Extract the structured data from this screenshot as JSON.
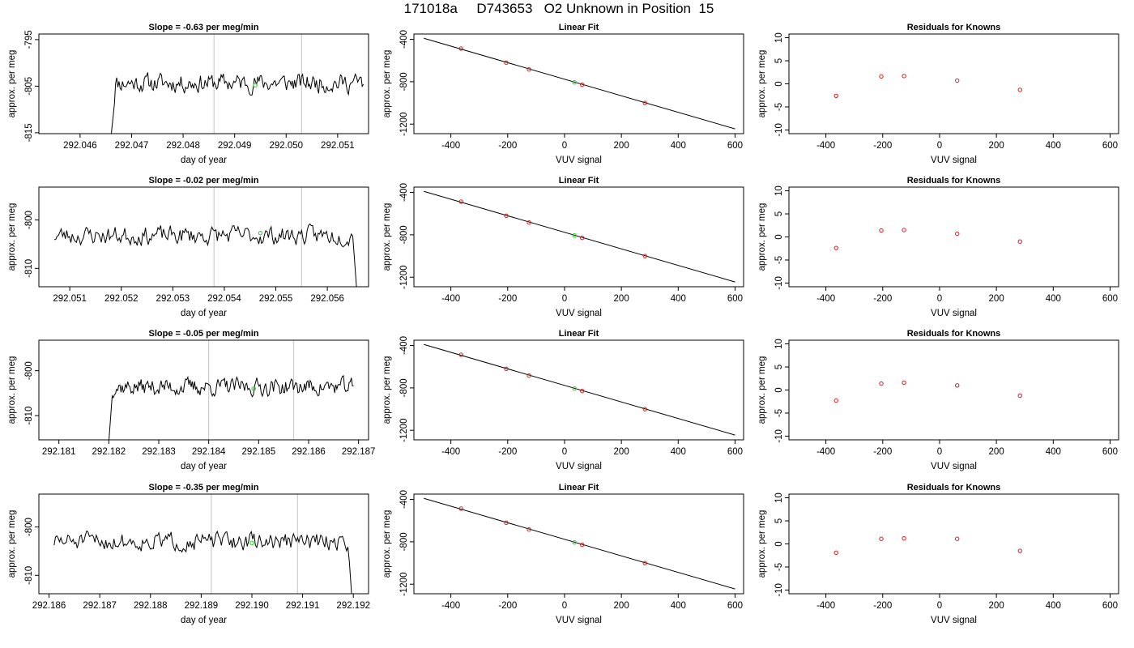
{
  "figure_title": "171018a     D743653   O2 Unknown in Position  15",
  "colors": {
    "trace": "#000000",
    "fit_line": "#000000",
    "point": "#d02020",
    "unknown_point": "#22dd22",
    "vline": "#cccccc"
  },
  "chart_data": [
    {
      "type": "line",
      "title": "Slope =  -0.63  per meg/min",
      "xlabel": "day of year",
      "ylabel": "approx. per meg",
      "xlim": [
        292.0452,
        292.0516
      ],
      "ylim": [
        -815.2,
        -793.8
      ],
      "xticks": [
        "292.046",
        "292.047",
        "292.048",
        "292.049",
        "292.050",
        "292.051"
      ],
      "xtick_values": [
        292.046,
        292.047,
        292.048,
        292.049,
        292.05,
        292.051
      ],
      "yticks": [
        "-815",
        "-805",
        "-795"
      ],
      "ytick_values": [
        -815,
        -805,
        -795
      ],
      "vlines": [
        292.0486,
        292.0503
      ],
      "trace": {
        "x_start": 292.0466,
        "x_end": 292.0515,
        "mean": -804.3,
        "noise": 2.4,
        "seed": 11,
        "start_value": -816,
        "start_len": 4,
        "end_value": null
      },
      "unknown_marker": {
        "x": 292.0494,
        "y": -804.8
      }
    },
    {
      "type": "scatter",
      "title": "Linear Fit",
      "xlabel": "VUV signal",
      "ylabel": "approx. per meg",
      "xlim": [
        -530,
        630
      ],
      "ylim": [
        -1290,
        -350
      ],
      "xticks": [
        "-400",
        "-200",
        "0",
        "200",
        "400",
        "600"
      ],
      "xtick_values": [
        -400,
        -200,
        0,
        200,
        400,
        600
      ],
      "yticks": [
        "-1200",
        "-800",
        "-400"
      ],
      "ytick_values": [
        -1200,
        -800,
        -400
      ],
      "fit_line": {
        "x": [
          -495,
          600
        ],
        "y": [
          -390,
          -1245
        ]
      },
      "points": {
        "x": [
          -364,
          -205,
          -125,
          62,
          283
        ],
        "y": [
          -487,
          -620,
          -684,
          -829,
          -1001
        ]
      },
      "unknown_marker": {
        "x": 35,
        "y": -806
      }
    },
    {
      "type": "scatter",
      "title": "Residuals for Knowns",
      "xlabel": "VUV signal",
      "ylabel": "approx. per meg",
      "xlim": [
        -530,
        630
      ],
      "ylim": [
        -10.8,
        10.8
      ],
      "xticks": [
        "-400",
        "-200",
        "0",
        "200",
        "400",
        "600"
      ],
      "xtick_values": [
        -400,
        -200,
        0,
        200,
        400,
        600
      ],
      "yticks": [
        "-10",
        "-5",
        "0",
        "5",
        "10"
      ],
      "ytick_values": [
        -10,
        -5,
        0,
        5,
        10
      ],
      "points": {
        "x": [
          -364,
          -205,
          -125,
          62,
          283
        ],
        "y": [
          -2.6,
          1.6,
          1.7,
          0.7,
          -1.3
        ]
      }
    },
    {
      "type": "line",
      "title": "Slope =  -0.02  per meg/min",
      "xlabel": "day of year",
      "ylabel": "approx. per meg",
      "xlim": [
        292.0504,
        292.0568
      ],
      "ylim": [
        -813.8,
        -793.2
      ],
      "xticks": [
        "292.051",
        "292.052",
        "292.053",
        "292.054",
        "292.055",
        "292.056"
      ],
      "xtick_values": [
        292.051,
        292.052,
        292.053,
        292.054,
        292.055,
        292.056
      ],
      "yticks": [
        "-810",
        "-800"
      ],
      "ytick_values": [
        -810,
        -800
      ],
      "vlines": [
        292.0538,
        292.0555
      ],
      "trace": {
        "x_start": 292.0507,
        "x_end": 292.0566,
        "mean": -803.2,
        "noise": 2.3,
        "seed": 23,
        "start_value": null,
        "start_len": 0,
        "end_value": -815
      },
      "unknown_marker": {
        "x": 292.0547,
        "y": -802.7
      }
    },
    {
      "type": "scatter",
      "title": "Linear Fit",
      "xlabel": "VUV signal",
      "ylabel": "approx. per meg",
      "xlim": [
        -530,
        630
      ],
      "ylim": [
        -1290,
        -350
      ],
      "xticks": [
        "-400",
        "-200",
        "0",
        "200",
        "400",
        "600"
      ],
      "xtick_values": [
        -400,
        -200,
        0,
        200,
        400,
        600
      ],
      "yticks": [
        "-1200",
        "-800",
        "-400"
      ],
      "ytick_values": [
        -1200,
        -800,
        -400
      ],
      "fit_line": {
        "x": [
          -495,
          600
        ],
        "y": [
          -390,
          -1245
        ]
      },
      "points": {
        "x": [
          -364,
          -205,
          -125,
          62,
          283
        ],
        "y": [
          -487,
          -620,
          -684,
          -829,
          -1001
        ]
      },
      "unknown_marker": {
        "x": 35,
        "y": -806
      }
    },
    {
      "type": "scatter",
      "title": "Residuals for Knowns",
      "xlabel": "VUV signal",
      "ylabel": "approx. per meg",
      "xlim": [
        -530,
        630
      ],
      "ylim": [
        -10.8,
        10.8
      ],
      "xticks": [
        "-400",
        "-200",
        "0",
        "200",
        "400",
        "600"
      ],
      "xtick_values": [
        -400,
        -200,
        0,
        200,
        400,
        600
      ],
      "yticks": [
        "-10",
        "-5",
        "0",
        "5",
        "10"
      ],
      "ytick_values": [
        -10,
        -5,
        0,
        5,
        10
      ],
      "points": {
        "x": [
          -364,
          -205,
          -125,
          62,
          283
        ],
        "y": [
          -2.4,
          1.4,
          1.5,
          0.7,
          -1.0
        ]
      }
    },
    {
      "type": "line",
      "title": "Slope =  -0.05  per meg/min",
      "xlabel": "day of year",
      "ylabel": "approx. per meg",
      "xlim": [
        292.1806,
        292.1872
      ],
      "ylim": [
        -815.4,
        -793.2
      ],
      "xticks": [
        "292.181",
        "292.182",
        "292.183",
        "292.184",
        "292.185",
        "292.186",
        "292.187"
      ],
      "xtick_values": [
        292.181,
        292.182,
        292.183,
        292.184,
        292.185,
        292.186,
        292.187
      ],
      "yticks": [
        "-810",
        "-800"
      ],
      "ytick_values": [
        -810,
        -800
      ],
      "vlines": [
        292.184,
        292.1857
      ],
      "trace": {
        "x_start": 292.182,
        "x_end": 292.1869,
        "mean": -803.6,
        "noise": 2.3,
        "seed": 37,
        "start_value": -816,
        "start_len": 3,
        "end_value": null
      },
      "unknown_marker": {
        "x": 292.1849,
        "y": -804.0
      }
    },
    {
      "type": "scatter",
      "title": "Linear Fit",
      "xlabel": "VUV signal",
      "ylabel": "approx. per meg",
      "xlim": [
        -530,
        630
      ],
      "ylim": [
        -1290,
        -350
      ],
      "xticks": [
        "-400",
        "-200",
        "0",
        "200",
        "400",
        "600"
      ],
      "xtick_values": [
        -400,
        -200,
        0,
        200,
        400,
        600
      ],
      "yticks": [
        "-1200",
        "-800",
        "-400"
      ],
      "ytick_values": [
        -1200,
        -800,
        -400
      ],
      "fit_line": {
        "x": [
          -495,
          600
        ],
        "y": [
          -390,
          -1245
        ]
      },
      "points": {
        "x": [
          -364,
          -205,
          -125,
          62,
          283
        ],
        "y": [
          -487,
          -620,
          -684,
          -829,
          -1001
        ]
      },
      "unknown_marker": {
        "x": 35,
        "y": -806
      }
    },
    {
      "type": "scatter",
      "title": "Residuals for Knowns",
      "xlabel": "VUV signal",
      "ylabel": "approx. per meg",
      "xlim": [
        -530,
        630
      ],
      "ylim": [
        -10.8,
        10.8
      ],
      "xticks": [
        "-400",
        "-200",
        "0",
        "200",
        "400",
        "600"
      ],
      "xtick_values": [
        -400,
        -200,
        0,
        200,
        400,
        600
      ],
      "yticks": [
        "-10",
        "-5",
        "0",
        "5",
        "10"
      ],
      "ytick_values": [
        -10,
        -5,
        0,
        5,
        10
      ],
      "points": {
        "x": [
          -364,
          -205,
          -125,
          62,
          283
        ],
        "y": [
          -2.3,
          1.4,
          1.6,
          1.0,
          -1.2
        ]
      }
    },
    {
      "type": "line",
      "title": "Slope =  -0.35  per meg/min",
      "xlabel": "day of year",
      "ylabel": "approx. per meg",
      "xlim": [
        292.1858,
        292.1923
      ],
      "ylim": [
        -813.8,
        -793.2
      ],
      "xticks": [
        "292.186",
        "292.187",
        "292.188",
        "292.189",
        "292.190",
        "292.191",
        "292.192"
      ],
      "xtick_values": [
        292.186,
        292.187,
        292.188,
        292.189,
        292.19,
        292.191,
        292.192
      ],
      "yticks": [
        "-810",
        "-800"
      ],
      "ytick_values": [
        -810,
        -800
      ],
      "vlines": [
        292.1892,
        292.1909
      ],
      "trace": {
        "x_start": 292.1861,
        "x_end": 292.192,
        "mean": -803.0,
        "noise": 2.2,
        "seed": 51,
        "start_value": null,
        "start_len": 0,
        "end_value": -815
      },
      "unknown_marker": {
        "x": 292.19,
        "y": -803.3
      }
    },
    {
      "type": "scatter",
      "title": "Linear Fit",
      "xlabel": "VUV signal",
      "ylabel": "approx. per meg",
      "xlim": [
        -530,
        630
      ],
      "ylim": [
        -1290,
        -350
      ],
      "xticks": [
        "-400",
        "-200",
        "0",
        "200",
        "400",
        "600"
      ],
      "xtick_values": [
        -400,
        -200,
        0,
        200,
        400,
        600
      ],
      "yticks": [
        "-1200",
        "-800",
        "-400"
      ],
      "ytick_values": [
        -1200,
        -800,
        -400
      ],
      "fit_line": {
        "x": [
          -495,
          600
        ],
        "y": [
          -390,
          -1245
        ]
      },
      "points": {
        "x": [
          -364,
          -205,
          -125,
          62,
          283
        ],
        "y": [
          -487,
          -620,
          -684,
          -829,
          -1001
        ]
      },
      "unknown_marker": {
        "x": 35,
        "y": -806
      }
    },
    {
      "type": "scatter",
      "title": "Residuals for Knowns",
      "xlabel": "VUV signal",
      "ylabel": "approx. per meg",
      "xlim": [
        -530,
        630
      ],
      "ylim": [
        -10.8,
        10.8
      ],
      "xticks": [
        "-400",
        "-200",
        "0",
        "200",
        "400",
        "600"
      ],
      "xtick_values": [
        -400,
        -200,
        0,
        200,
        400,
        600
      ],
      "yticks": [
        "-10",
        "-5",
        "0",
        "5",
        "10"
      ],
      "ytick_values": [
        -10,
        -5,
        0,
        5,
        10
      ],
      "points": {
        "x": [
          -364,
          -205,
          -125,
          62,
          283
        ],
        "y": [
          -1.9,
          1.1,
          1.2,
          1.1,
          -1.5
        ]
      }
    }
  ]
}
